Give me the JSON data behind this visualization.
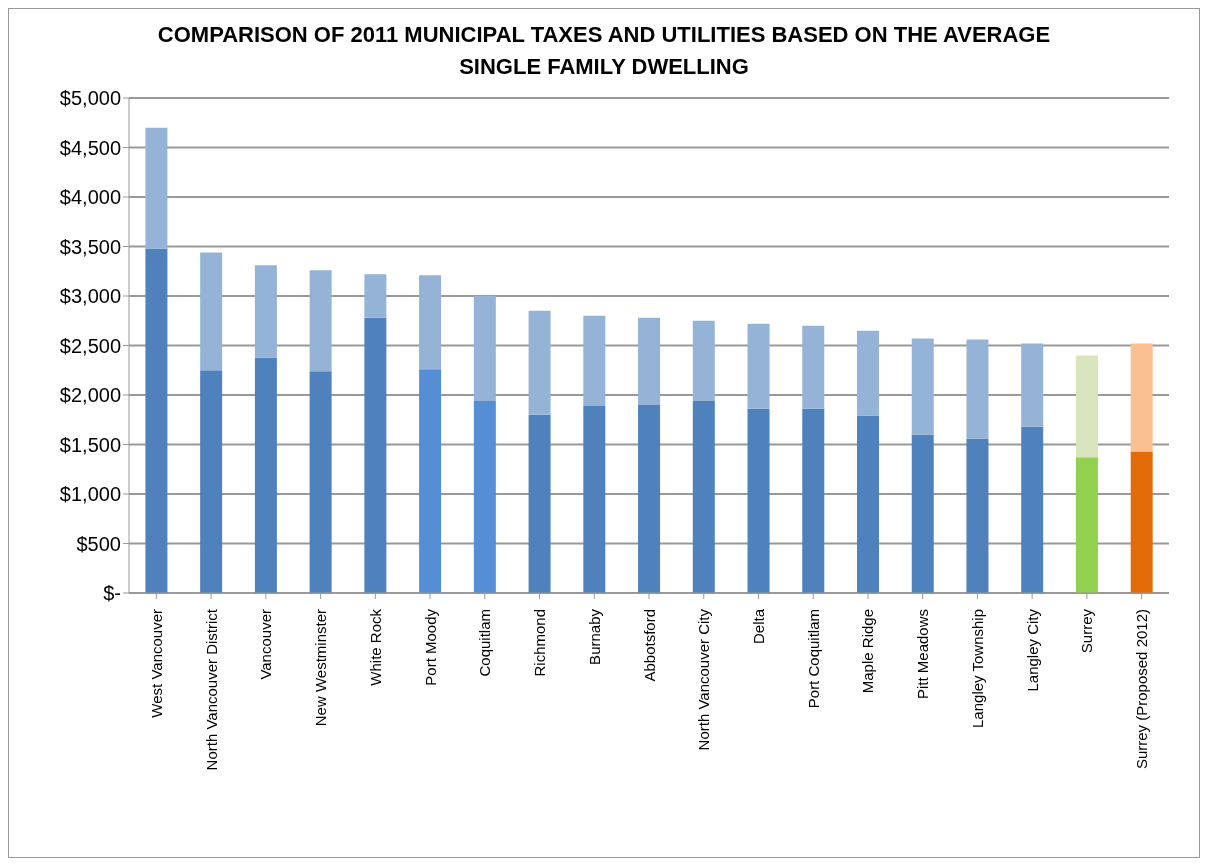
{
  "chart_data": {
    "type": "bar",
    "title": "COMPARISON OF 2011 MUNICIPAL TAXES AND UTILITIES BASED ON THE AVERAGE SINGLE FAMILY DWELLING",
    "categories": [
      "West Vancouver",
      "North Vancouver District",
      "Vancouver",
      "New Westminster",
      "White Rock",
      "Port Moody",
      "Coquitlam",
      "Richmond",
      "Burnaby",
      "Abbotsford",
      "North Vancouver City",
      "Delta",
      "Port Coquitlam",
      "Maple Ridge",
      "Pitt Meadows",
      "Langley Township",
      "Langley City",
      "Surrey",
      "Surrey (Proposed 2012)"
    ],
    "stacked": true,
    "series": [
      {
        "colors": [
          "#4f81bd",
          "#4f81bd",
          "#4f81bd",
          "#4f81bd",
          "#4f81bd",
          "#558ed5",
          "#558ed5",
          "#4f81bd",
          "#4f81bd",
          "#4f81bd",
          "#4f81bd",
          "#4f81bd",
          "#4f81bd",
          "#4f81bd",
          "#4f81bd",
          "#4f81bd",
          "#4f81bd",
          "#92d050",
          "#e36c09"
        ],
        "values": [
          3480,
          2250,
          2380,
          2240,
          2780,
          2260,
          1940,
          1800,
          1890,
          1900,
          1940,
          1860,
          1860,
          1790,
          1600,
          1560,
          1680,
          1370,
          1430
        ]
      },
      {
        "colors": [
          "#95b3d7",
          "#95b3d7",
          "#95b3d7",
          "#95b3d7",
          "#95b3d7",
          "#95b3d7",
          "#95b3d7",
          "#95b3d7",
          "#95b3d7",
          "#95b3d7",
          "#95b3d7",
          "#95b3d7",
          "#95b3d7",
          "#95b3d7",
          "#95b3d7",
          "#95b3d7",
          "#95b3d7",
          "#d7e4bd",
          "#fac090"
        ],
        "values": [
          1220,
          1190,
          930,
          1020,
          440,
          950,
          1060,
          1050,
          910,
          880,
          810,
          860,
          840,
          860,
          970,
          1000,
          840,
          1030,
          1090
        ]
      }
    ],
    "ylim": [
      0,
      5000
    ],
    "yticks": [
      {
        "value": 0,
        "label": "$-"
      },
      {
        "value": 500,
        "label": "$500"
      },
      {
        "value": 1000,
        "label": "$1,000"
      },
      {
        "value": 1500,
        "label": "$1,500"
      },
      {
        "value": 2000,
        "label": "$2,000"
      },
      {
        "value": 2500,
        "label": "$2,500"
      },
      {
        "value": 3000,
        "label": "$3,000"
      },
      {
        "value": 3500,
        "label": "$3,500"
      },
      {
        "value": 4000,
        "label": "$4,000"
      },
      {
        "value": 4500,
        "label": "$4,500"
      },
      {
        "value": 5000,
        "label": "$5,000"
      }
    ],
    "grid": "y",
    "legend": false
  }
}
